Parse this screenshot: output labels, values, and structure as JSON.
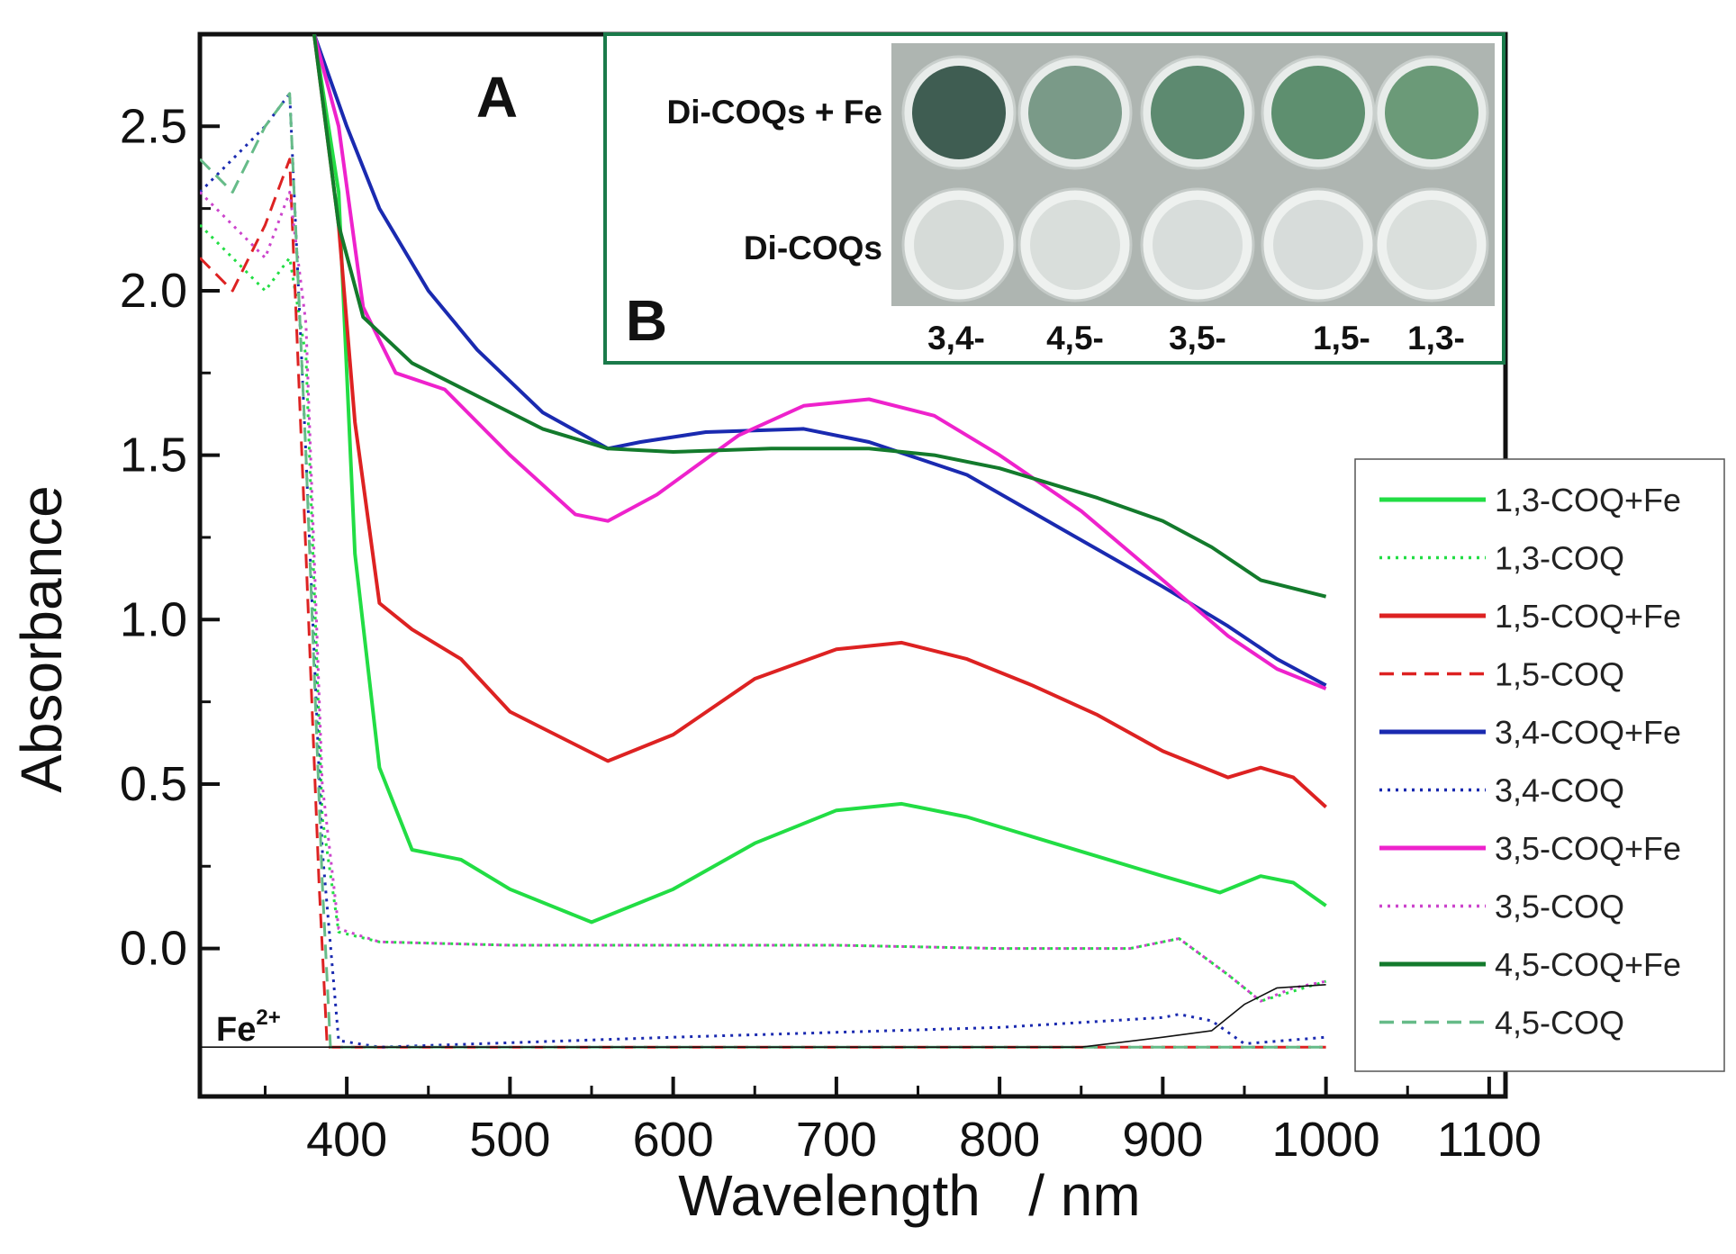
{
  "chart_data": {
    "type": "line",
    "panel_a_label": "A",
    "xlabel": "Wavelength   / nm",
    "ylabel": "Absorbance",
    "xlim": [
      310,
      1110
    ],
    "ylim": [
      -0.45,
      2.78
    ],
    "x_ticks": [
      400,
      500,
      600,
      700,
      800,
      900,
      1000,
      1100
    ],
    "x_tick_labels": [
      "400",
      "500",
      "600",
      "700",
      "800",
      "900",
      "1000",
      "1100"
    ],
    "y_ticks": [
      0.0,
      0.5,
      1.0,
      1.5,
      2.0,
      2.5
    ],
    "y_tick_labels": [
      "0.0",
      "0.5",
      "1.0",
      "1.5",
      "2.0",
      "2.5"
    ],
    "baseline_label": "Fe",
    "baseline_label_sup": "2+",
    "legend_position": "right",
    "series": [
      {
        "name": "1,3-COQ+Fe",
        "color": "#22dd44",
        "style": "solid",
        "x": [
          380,
          395,
          405,
          420,
          440,
          470,
          500,
          550,
          600,
          650,
          700,
          740,
          780,
          820,
          860,
          900,
          935,
          960,
          980,
          1000
        ],
        "y": [
          2.78,
          2.3,
          1.2,
          0.55,
          0.3,
          0.27,
          0.18,
          0.08,
          0.18,
          0.32,
          0.42,
          0.44,
          0.4,
          0.34,
          0.28,
          0.22,
          0.17,
          0.22,
          0.2,
          0.13
        ]
      },
      {
        "name": "1,3-COQ",
        "color": "#22dd44",
        "style": "dotted",
        "x": [
          310,
          330,
          350,
          365,
          375,
          385,
          395,
          420,
          500,
          600,
          700,
          800,
          880,
          910,
          940,
          960,
          980,
          1000
        ],
        "y": [
          2.2,
          2.1,
          2.0,
          2.1,
          1.8,
          0.4,
          0.05,
          0.02,
          0.01,
          0.01,
          0.01,
          0.0,
          0.0,
          0.03,
          -0.08,
          -0.16,
          -0.13,
          -0.1
        ]
      },
      {
        "name": "1,5-COQ+Fe",
        "color": "#dd2222",
        "style": "solid",
        "x": [
          380,
          395,
          405,
          420,
          440,
          470,
          500,
          560,
          600,
          650,
          700,
          740,
          780,
          820,
          860,
          900,
          940,
          960,
          980,
          1000
        ],
        "y": [
          2.78,
          2.2,
          1.6,
          1.05,
          0.97,
          0.88,
          0.72,
          0.57,
          0.65,
          0.82,
          0.91,
          0.93,
          0.88,
          0.8,
          0.71,
          0.6,
          0.52,
          0.55,
          0.52,
          0.43
        ]
      },
      {
        "name": "1,5-COQ",
        "color": "#dd2222",
        "style": "dashed",
        "x": [
          310,
          330,
          350,
          365,
          375,
          383,
          388,
          395,
          450,
          600,
          800,
          1000
        ],
        "y": [
          2.1,
          2.0,
          2.2,
          2.4,
          1.2,
          0.2,
          -0.3,
          -0.3,
          -0.3,
          -0.3,
          -0.3,
          -0.3
        ]
      },
      {
        "name": "3,4-COQ+Fe",
        "color": "#1a2ab0",
        "style": "solid",
        "x": [
          380,
          400,
          420,
          450,
          480,
          520,
          560,
          580,
          620,
          680,
          720,
          780,
          840,
          900,
          940,
          970,
          1000
        ],
        "y": [
          2.78,
          2.5,
          2.25,
          2.0,
          1.82,
          1.63,
          1.52,
          1.54,
          1.57,
          1.58,
          1.54,
          1.44,
          1.27,
          1.1,
          0.98,
          0.88,
          0.8
        ]
      },
      {
        "name": "3,4-COQ",
        "color": "#1a2ab0",
        "style": "dotted",
        "x": [
          310,
          330,
          350,
          365,
          375,
          385,
          395,
          420,
          600,
          800,
          900,
          910,
          930,
          950,
          1000
        ],
        "y": [
          2.3,
          2.4,
          2.5,
          2.6,
          1.5,
          0.3,
          -0.28,
          -0.3,
          -0.27,
          -0.24,
          -0.21,
          -0.2,
          -0.22,
          -0.29,
          -0.27
        ]
      },
      {
        "name": "3,5-COQ+Fe",
        "color": "#ee22cc",
        "style": "solid",
        "x": [
          380,
          395,
          410,
          430,
          460,
          500,
          540,
          560,
          590,
          640,
          680,
          720,
          760,
          800,
          850,
          900,
          940,
          970,
          1000
        ],
        "y": [
          2.78,
          2.5,
          1.95,
          1.75,
          1.7,
          1.5,
          1.32,
          1.3,
          1.38,
          1.56,
          1.65,
          1.67,
          1.62,
          1.5,
          1.33,
          1.12,
          0.95,
          0.85,
          0.79
        ]
      },
      {
        "name": "3,5-COQ",
        "color": "#cc44cc",
        "style": "dotted",
        "x": [
          310,
          330,
          350,
          365,
          375,
          385,
          395,
          420,
          500,
          600,
          700,
          800,
          880,
          910,
          940,
          960,
          980,
          1000
        ],
        "y": [
          2.3,
          2.2,
          2.1,
          2.3,
          1.9,
          0.5,
          0.06,
          0.02,
          0.01,
          0.01,
          0.01,
          0.0,
          0.0,
          0.03,
          -0.08,
          -0.16,
          -0.12,
          -0.1
        ]
      },
      {
        "name": "4,5-COQ+Fe",
        "color": "#137a2c",
        "style": "solid",
        "x": [
          380,
          395,
          410,
          440,
          480,
          520,
          560,
          600,
          660,
          720,
          760,
          800,
          860,
          900,
          930,
          960,
          1000
        ],
        "y": [
          2.78,
          2.2,
          1.92,
          1.78,
          1.68,
          1.58,
          1.52,
          1.51,
          1.52,
          1.52,
          1.5,
          1.46,
          1.37,
          1.3,
          1.22,
          1.12,
          1.07
        ]
      },
      {
        "name": "4,5-COQ",
        "color": "#66bb88",
        "style": "dashed",
        "x": [
          310,
          330,
          350,
          365,
          375,
          385,
          390,
          400,
          600,
          800,
          1000
        ],
        "y": [
          2.4,
          2.3,
          2.5,
          2.6,
          1.5,
          0.2,
          -0.3,
          -0.3,
          -0.3,
          -0.3,
          -0.3
        ]
      },
      {
        "name": "Fe2+",
        "color": "#111111",
        "style": "thin",
        "x": [
          310,
          600,
          850,
          900,
          930,
          950,
          970,
          1000
        ],
        "y": [
          -0.3,
          -0.3,
          -0.3,
          -0.27,
          -0.25,
          -0.17,
          -0.12,
          -0.11
        ]
      }
    ]
  },
  "inset": {
    "panel_label": "B",
    "row_labels": [
      "Di-COQs + Fe",
      "Di-COQs"
    ],
    "column_labels": [
      "3,4-",
      "4,5-",
      "3,5-",
      "1,5-",
      "1,3-"
    ],
    "well_colors_fe": [
      "#3f5d52",
      "#7a9a88",
      "#5d8a70",
      "#5e8f6f",
      "#6b9a78"
    ],
    "well_colors_plain": [
      "#d6dbd8",
      "#d9dedb",
      "#d8dddb",
      "#d7dcda",
      "#dadfdc"
    ],
    "photo_background": "#aeb5b1",
    "frame_color": "#1a7a4a"
  }
}
